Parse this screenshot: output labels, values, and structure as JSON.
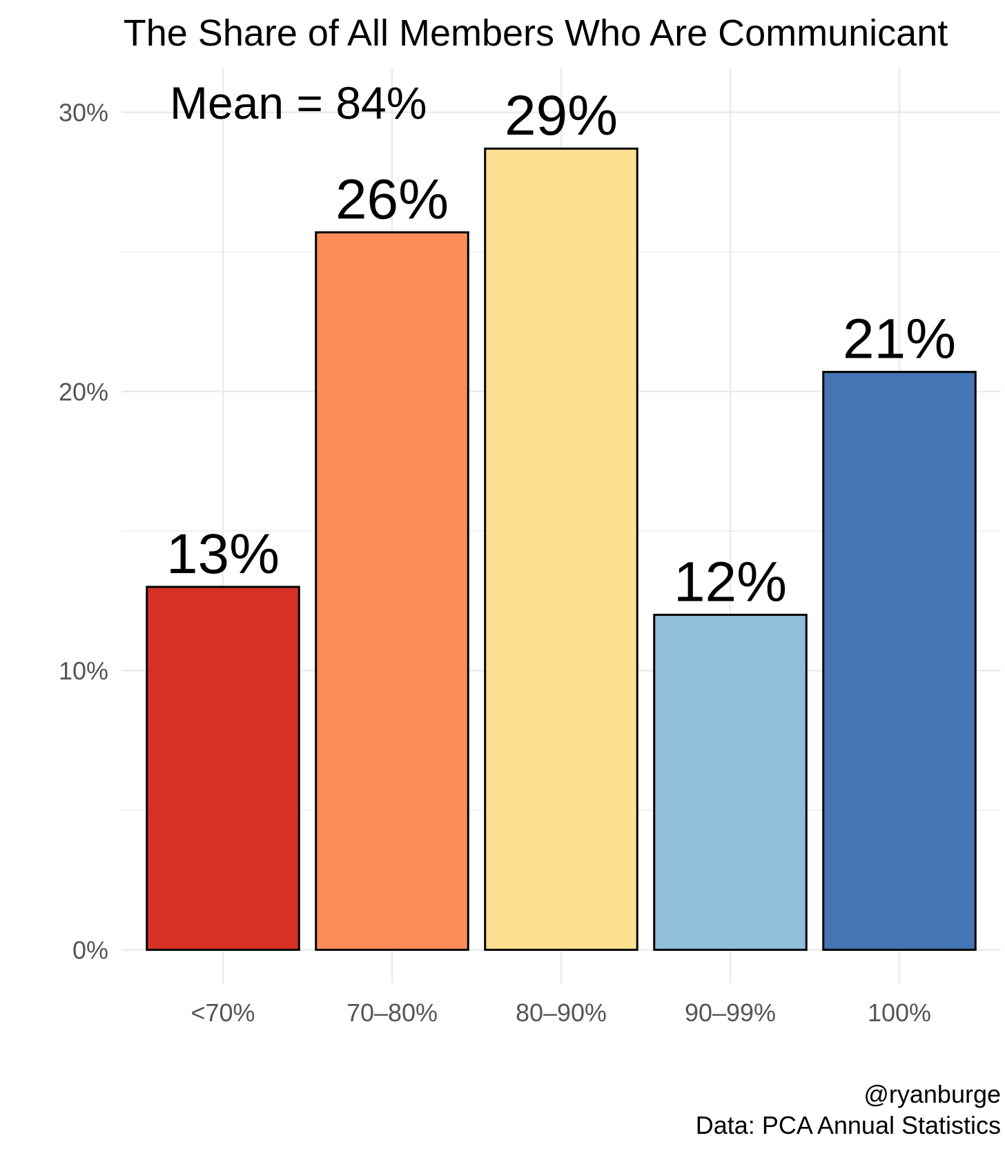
{
  "chart_data": {
    "type": "bar",
    "title": "The Share of All Members Who Are Communicant",
    "annotation": "Mean = 84%",
    "categories": [
      "<70%",
      "70–80%",
      "80–90%",
      "90–99%",
      "100%"
    ],
    "values": [
      13,
      25.7,
      28.7,
      12,
      20.7
    ],
    "data_labels": [
      "13%",
      "26%",
      "29%",
      "12%",
      "21%"
    ],
    "colors": [
      "#d73027",
      "#fc8d59",
      "#fee090",
      "#91bfdb",
      "#4575b4"
    ],
    "bar_outline": "#000000",
    "ylim": [
      -1.2,
      31.6
    ],
    "yticks": [
      0,
      10,
      20,
      30
    ],
    "ytick_labels": [
      "0%",
      "10%",
      "20%",
      "30%"
    ],
    "grid": true,
    "legend": "none",
    "caption": [
      "@ryanburge",
      "Data: PCA Annual Statistics"
    ]
  }
}
